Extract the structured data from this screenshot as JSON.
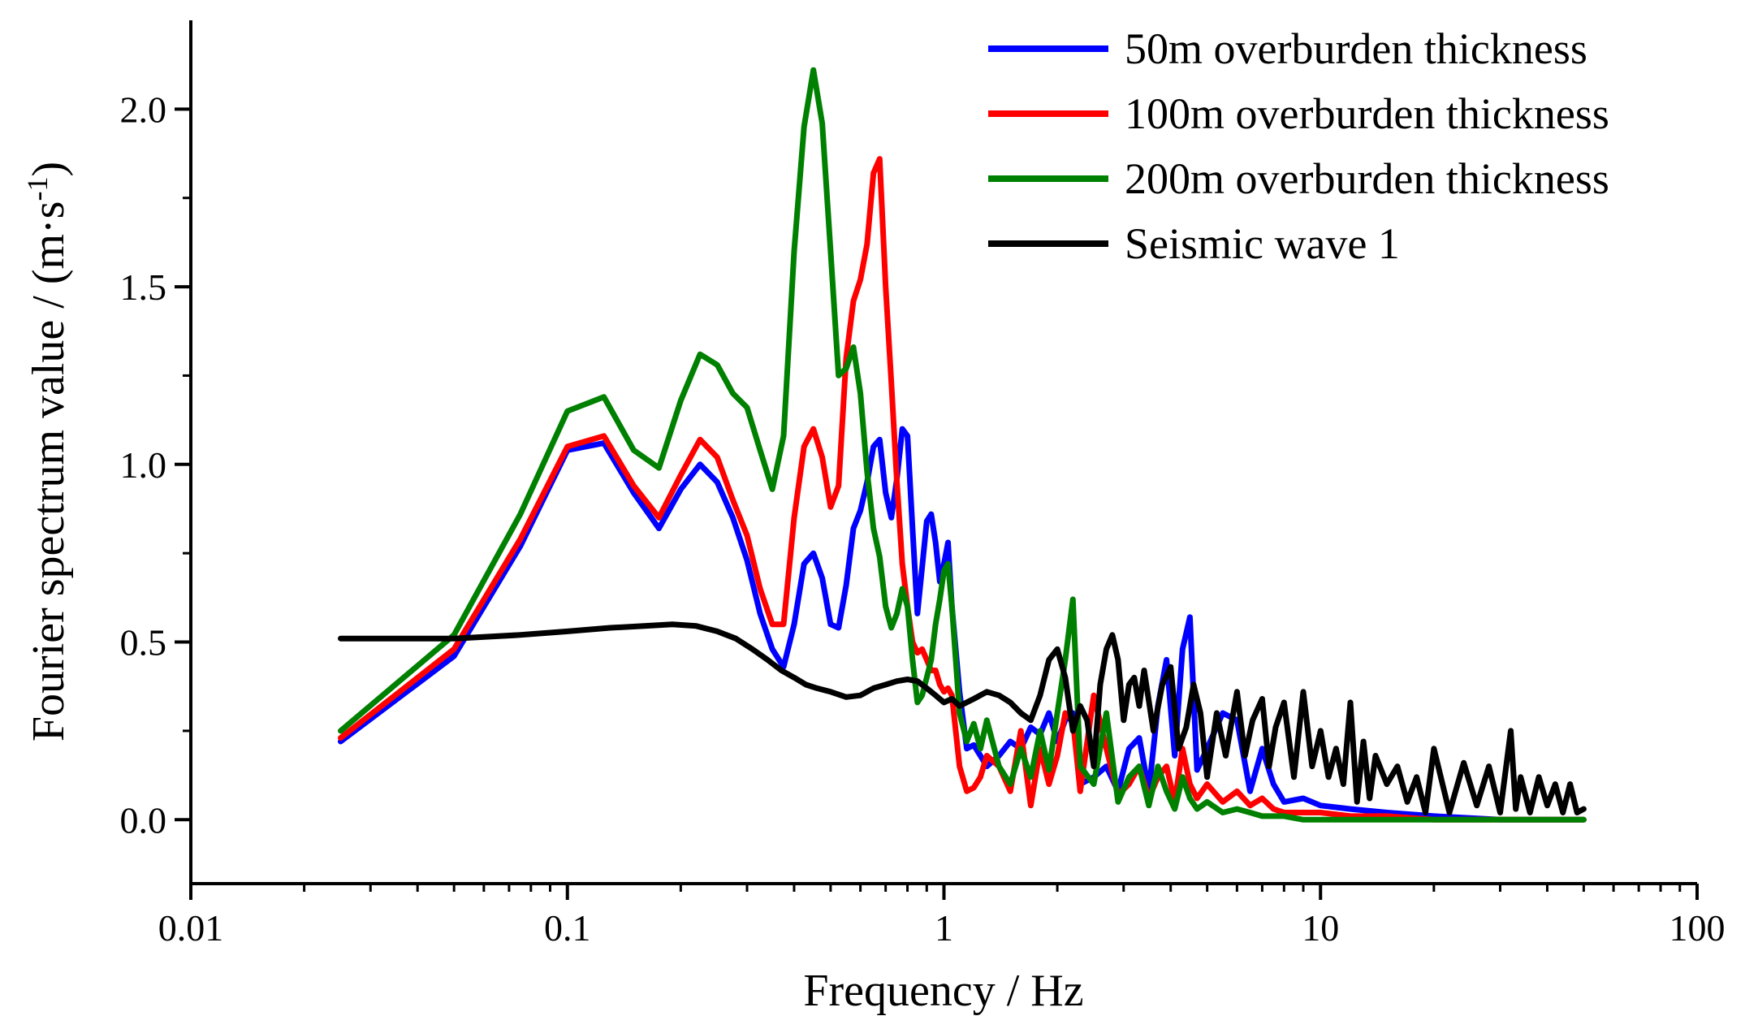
{
  "chart_data": {
    "type": "line",
    "title": "",
    "xlabel": "Frequency / Hz",
    "ylabel": {
      "main": "Fourier spectrum value / (m·s",
      "superscript": "-1",
      "close": ")"
    },
    "xscale": "log",
    "xlim": [
      0.01,
      100
    ],
    "ylim": [
      -0.18,
      2.25
    ],
    "xticks": [
      {
        "value": 0.01,
        "label": "0.01"
      },
      {
        "value": 0.1,
        "label": "0.1"
      },
      {
        "value": 1,
        "label": "1"
      },
      {
        "value": 10,
        "label": "10"
      },
      {
        "value": 100,
        "label": "100"
      }
    ],
    "yticks": [
      {
        "value": 0.0,
        "label": "0.0"
      },
      {
        "value": 0.5,
        "label": "0.5"
      },
      {
        "value": 1.0,
        "label": "1.0"
      },
      {
        "value": 1.5,
        "label": "1.5"
      },
      {
        "value": 2.0,
        "label": "2.0"
      }
    ],
    "legend_position": "top-right",
    "series": [
      {
        "name": "50m overburden thickness",
        "color": "#0000ff",
        "x": [
          0.025,
          0.05,
          0.075,
          0.1,
          0.125,
          0.15,
          0.175,
          0.2,
          0.225,
          0.25,
          0.275,
          0.3,
          0.325,
          0.35,
          0.375,
          0.4,
          0.425,
          0.45,
          0.475,
          0.5,
          0.525,
          0.55,
          0.575,
          0.6,
          0.625,
          0.65,
          0.675,
          0.7,
          0.725,
          0.75,
          0.775,
          0.8,
          0.825,
          0.85,
          0.875,
          0.9,
          0.925,
          0.95,
          0.975,
          1.0,
          1.025,
          1.05,
          1.1,
          1.15,
          1.2,
          1.25,
          1.3,
          1.4,
          1.5,
          1.6,
          1.7,
          1.8,
          1.9,
          2.0,
          2.1,
          2.2,
          2.3,
          2.5,
          2.7,
          2.9,
          3.1,
          3.3,
          3.5,
          3.7,
          3.9,
          4.1,
          4.3,
          4.5,
          4.7,
          5.0,
          5.5,
          6,
          6.5,
          7,
          7.5,
          8,
          9,
          10,
          12,
          15,
          20,
          30,
          40,
          50
        ],
        "y": [
          0.22,
          0.46,
          0.77,
          1.04,
          1.06,
          0.92,
          0.82,
          0.93,
          1.0,
          0.95,
          0.85,
          0.73,
          0.58,
          0.48,
          0.43,
          0.55,
          0.72,
          0.75,
          0.68,
          0.55,
          0.54,
          0.66,
          0.82,
          0.87,
          0.95,
          1.05,
          1.07,
          0.92,
          0.85,
          0.96,
          1.1,
          1.08,
          0.82,
          0.58,
          0.71,
          0.84,
          0.86,
          0.78,
          0.67,
          0.72,
          0.78,
          0.6,
          0.36,
          0.2,
          0.21,
          0.18,
          0.15,
          0.18,
          0.22,
          0.2,
          0.26,
          0.24,
          0.3,
          0.22,
          0.28,
          0.3,
          0.1,
          0.12,
          0.15,
          0.08,
          0.2,
          0.23,
          0.08,
          0.32,
          0.45,
          0.18,
          0.48,
          0.57,
          0.14,
          0.2,
          0.3,
          0.28,
          0.08,
          0.2,
          0.1,
          0.05,
          0.06,
          0.04,
          0.03,
          0.02,
          0.01,
          0.0,
          0.0,
          0.0
        ]
      },
      {
        "name": "100m overburden thickness",
        "color": "#ff0000",
        "x": [
          0.025,
          0.05,
          0.075,
          0.1,
          0.125,
          0.15,
          0.175,
          0.2,
          0.225,
          0.25,
          0.275,
          0.3,
          0.325,
          0.35,
          0.375,
          0.4,
          0.425,
          0.45,
          0.475,
          0.5,
          0.525,
          0.55,
          0.575,
          0.6,
          0.625,
          0.65,
          0.675,
          0.7,
          0.725,
          0.75,
          0.775,
          0.8,
          0.825,
          0.85,
          0.875,
          0.9,
          0.925,
          0.95,
          0.975,
          1.0,
          1.025,
          1.05,
          1.1,
          1.15,
          1.2,
          1.25,
          1.3,
          1.4,
          1.5,
          1.6,
          1.7,
          1.8,
          1.9,
          2.0,
          2.1,
          2.2,
          2.3,
          2.5,
          2.7,
          2.9,
          3.1,
          3.3,
          3.5,
          3.7,
          3.9,
          4.1,
          4.3,
          4.5,
          4.7,
          5.0,
          5.5,
          6,
          6.5,
          7,
          7.5,
          8,
          9,
          10,
          12,
          15,
          20,
          30,
          40,
          50
        ],
        "y": [
          0.23,
          0.48,
          0.79,
          1.05,
          1.08,
          0.94,
          0.85,
          0.97,
          1.07,
          1.02,
          0.9,
          0.8,
          0.65,
          0.55,
          0.55,
          0.85,
          1.05,
          1.1,
          1.02,
          0.88,
          0.94,
          1.3,
          1.46,
          1.52,
          1.62,
          1.82,
          1.86,
          1.5,
          1.23,
          0.95,
          0.72,
          0.6,
          0.5,
          0.47,
          0.48,
          0.45,
          0.42,
          0.42,
          0.38,
          0.36,
          0.37,
          0.35,
          0.15,
          0.08,
          0.09,
          0.12,
          0.18,
          0.15,
          0.08,
          0.25,
          0.04,
          0.2,
          0.1,
          0.18,
          0.3,
          0.28,
          0.08,
          0.35,
          0.2,
          0.07,
          0.1,
          0.15,
          0.06,
          0.12,
          0.15,
          0.05,
          0.2,
          0.1,
          0.06,
          0.1,
          0.05,
          0.08,
          0.04,
          0.06,
          0.03,
          0.02,
          0.02,
          0.02,
          0.01,
          0.01,
          0.0,
          0.0,
          0.0,
          0.0
        ]
      },
      {
        "name": "200m overburden thickness",
        "color": "#008000",
        "x": [
          0.025,
          0.05,
          0.075,
          0.1,
          0.125,
          0.15,
          0.175,
          0.2,
          0.225,
          0.25,
          0.275,
          0.3,
          0.325,
          0.35,
          0.375,
          0.4,
          0.425,
          0.45,
          0.475,
          0.5,
          0.525,
          0.55,
          0.575,
          0.6,
          0.625,
          0.65,
          0.675,
          0.7,
          0.725,
          0.75,
          0.775,
          0.8,
          0.825,
          0.85,
          0.875,
          0.9,
          0.925,
          0.95,
          0.975,
          1.0,
          1.025,
          1.05,
          1.1,
          1.15,
          1.2,
          1.25,
          1.3,
          1.4,
          1.5,
          1.6,
          1.7,
          1.8,
          1.9,
          2.0,
          2.1,
          2.2,
          2.3,
          2.5,
          2.7,
          2.9,
          3.1,
          3.3,
          3.5,
          3.7,
          3.9,
          4.1,
          4.3,
          4.5,
          4.7,
          5.0,
          5.5,
          6,
          6.5,
          7,
          7.5,
          8,
          9,
          10,
          12,
          15,
          20,
          30,
          40,
          50
        ],
        "y": [
          0.25,
          0.52,
          0.86,
          1.15,
          1.19,
          1.04,
          0.99,
          1.18,
          1.31,
          1.28,
          1.2,
          1.16,
          1.04,
          0.93,
          1.08,
          1.6,
          1.95,
          2.11,
          1.96,
          1.6,
          1.25,
          1.27,
          1.33,
          1.2,
          0.98,
          0.82,
          0.74,
          0.6,
          0.54,
          0.58,
          0.65,
          0.6,
          0.45,
          0.33,
          0.35,
          0.4,
          0.45,
          0.55,
          0.62,
          0.7,
          0.72,
          0.6,
          0.3,
          0.22,
          0.27,
          0.2,
          0.28,
          0.15,
          0.1,
          0.2,
          0.12,
          0.25,
          0.14,
          0.3,
          0.45,
          0.62,
          0.15,
          0.1,
          0.3,
          0.05,
          0.12,
          0.15,
          0.04,
          0.15,
          0.08,
          0.03,
          0.12,
          0.06,
          0.03,
          0.05,
          0.02,
          0.03,
          0.02,
          0.01,
          0.01,
          0.01,
          0.0,
          0.0,
          0.0,
          0.0,
          0.0,
          0.0,
          0.0,
          0.0
        ]
      },
      {
        "name": "Seismic wave 1",
        "color": "#000000",
        "x": [
          0.025,
          0.05,
          0.075,
          0.1,
          0.13,
          0.16,
          0.19,
          0.22,
          0.25,
          0.28,
          0.31,
          0.34,
          0.37,
          0.4,
          0.43,
          0.46,
          0.5,
          0.55,
          0.6,
          0.65,
          0.7,
          0.75,
          0.8,
          0.85,
          0.9,
          0.95,
          1.0,
          1.05,
          1.1,
          1.2,
          1.3,
          1.4,
          1.5,
          1.6,
          1.7,
          1.8,
          1.9,
          2.0,
          2.1,
          2.2,
          2.3,
          2.4,
          2.5,
          2.6,
          2.7,
          2.8,
          2.9,
          3.0,
          3.1,
          3.2,
          3.3,
          3.4,
          3.6,
          3.8,
          4.0,
          4.2,
          4.4,
          4.6,
          4.8,
          5.0,
          5.3,
          5.6,
          6.0,
          6.3,
          6.6,
          7.0,
          7.3,
          7.6,
          8.0,
          8.5,
          9.0,
          9.5,
          10,
          10.5,
          11,
          11.5,
          12,
          12.5,
          13,
          13.5,
          14,
          15,
          16,
          17,
          18,
          19,
          20,
          22,
          24,
          26,
          28,
          30,
          32,
          33,
          34,
          36,
          38,
          40,
          42,
          44,
          46,
          48,
          50
        ],
        "y": [
          0.51,
          0.51,
          0.52,
          0.53,
          0.54,
          0.545,
          0.55,
          0.545,
          0.53,
          0.51,
          0.48,
          0.45,
          0.42,
          0.4,
          0.38,
          0.37,
          0.36,
          0.345,
          0.35,
          0.37,
          0.38,
          0.39,
          0.395,
          0.39,
          0.37,
          0.35,
          0.33,
          0.34,
          0.32,
          0.34,
          0.36,
          0.35,
          0.33,
          0.3,
          0.28,
          0.35,
          0.45,
          0.48,
          0.4,
          0.25,
          0.32,
          0.28,
          0.15,
          0.38,
          0.48,
          0.52,
          0.45,
          0.28,
          0.38,
          0.4,
          0.32,
          0.42,
          0.25,
          0.38,
          0.43,
          0.2,
          0.26,
          0.38,
          0.3,
          0.12,
          0.3,
          0.18,
          0.36,
          0.18,
          0.28,
          0.34,
          0.15,
          0.26,
          0.33,
          0.12,
          0.36,
          0.15,
          0.25,
          0.12,
          0.2,
          0.1,
          0.33,
          0.05,
          0.22,
          0.06,
          0.18,
          0.1,
          0.15,
          0.05,
          0.12,
          0.02,
          0.2,
          0.02,
          0.16,
          0.04,
          0.15,
          0.02,
          0.25,
          0.03,
          0.12,
          0.02,
          0.12,
          0.04,
          0.1,
          0.02,
          0.1,
          0.02,
          0.03
        ]
      }
    ]
  }
}
